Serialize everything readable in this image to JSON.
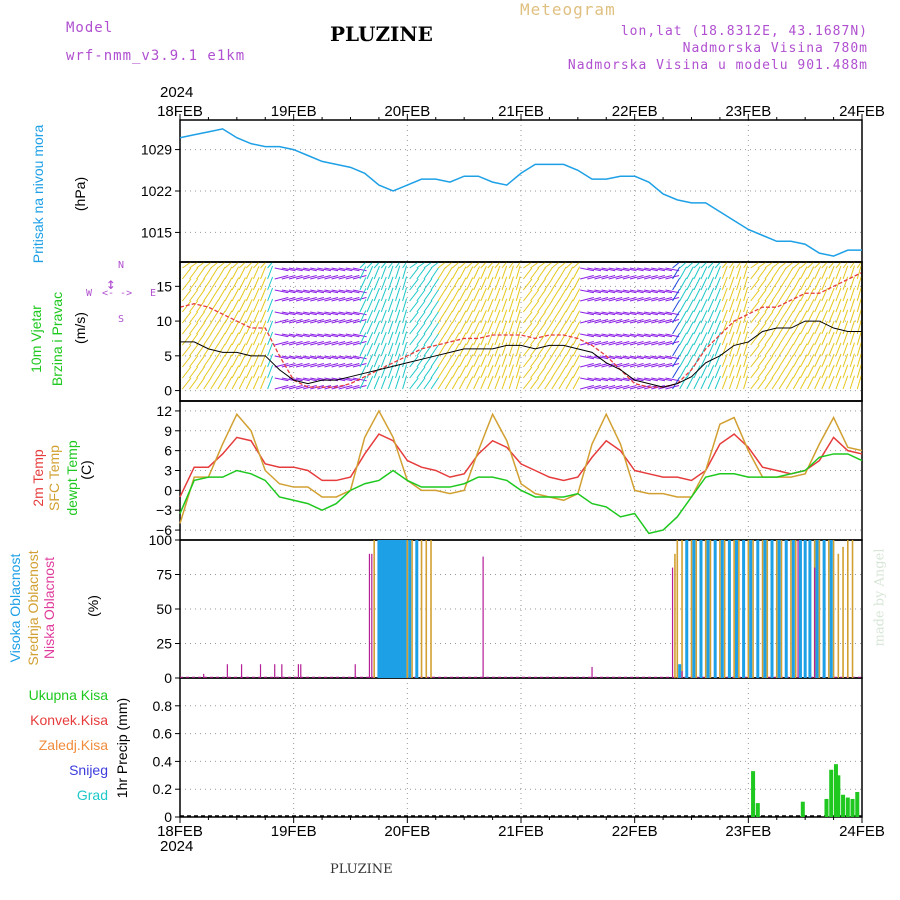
{
  "header": {
    "model_label": "Model",
    "model_name": "wrf-nmm_v3.9.1 e1km",
    "title": "PLUZINE",
    "meteogram": "Meteogram",
    "lonlat": "lon,lat (18.8312E, 43.1687N)",
    "altitude": "Nadmorska Visina 780m",
    "altitude_model": "Nadmorska Visina u modelu 901.488m",
    "year": "2024",
    "footer_title": "PLUZINE",
    "watermark": "made by Angel"
  },
  "colors": {
    "pressure": "#1ea0e6",
    "wind_low": "#1e46dc",
    "wind_mid": "#1ec8c8",
    "wind_high": "#e6c81e",
    "wind_dir": "#8c1ee6",
    "temp2m": "#e63c3c",
    "sfc": "#d2a032",
    "dew": "#1ec81e",
    "high_cloud": "#1ea0e6",
    "mid_cloud": "#d2a032",
    "low_cloud": "#b41e96",
    "precip": "#1ec81e",
    "convective": "#e63c3c",
    "freezing": "#f08c3c",
    "snow": "#3c3cdc",
    "hail": "#1ec8c8"
  },
  "axis_labels": {
    "pressure": [
      "Pritisak na nivou mora",
      "(hPa)"
    ],
    "wind": [
      "10m Vjetar",
      "Brzina i Pravac",
      "(m/s)"
    ],
    "compass": [
      "N",
      "S",
      "W",
      "E"
    ],
    "temp": [
      "2m Temp",
      "SFC Temp",
      "dewpt Temp",
      "(C)"
    ],
    "cloud": [
      "Visoka Oblacnost",
      "Srednja Oblacnost",
      "Niska Oblacnost",
      "(%)"
    ],
    "precip": [
      "Ukupna Kisa",
      "Konvek.Kisa",
      "Zaledj.Kisa",
      "Snijeg",
      "Grad",
      "1hr Precip (mm)"
    ]
  },
  "chart_data": [
    {
      "type": "line",
      "panel": "pressure",
      "x_ticks": [
        "18FEB",
        "19FEB",
        "20FEB",
        "21FEB",
        "22FEB",
        "23FEB",
        "24FEB"
      ],
      "xlim": [
        0,
        144
      ],
      "ylim": [
        1010,
        1034
      ],
      "y_ticks": [
        1015,
        1022,
        1029
      ],
      "series": [
        {
          "x": [
            0,
            3,
            6,
            9,
            12,
            15,
            18,
            21,
            24,
            27,
            30,
            33,
            36,
            39,
            42,
            45,
            48,
            51,
            54,
            57,
            60,
            63,
            66,
            69,
            72,
            75,
            78,
            81,
            84,
            87,
            90,
            93,
            96,
            99,
            102,
            105,
            108,
            111,
            114,
            117,
            120,
            123,
            126,
            129,
            132,
            135,
            138,
            141,
            144
          ],
          "values": [
            1031,
            1031.5,
            1032,
            1032.5,
            1031,
            1030,
            1029.5,
            1029.5,
            1029,
            1028,
            1027,
            1026.5,
            1026,
            1025,
            1023,
            1022,
            1023,
            1024,
            1024,
            1023.5,
            1024.5,
            1024.5,
            1023.5,
            1023,
            1025,
            1026.5,
            1026.5,
            1026.5,
            1025.5,
            1024,
            1024,
            1024.5,
            1024.5,
            1023.5,
            1021.5,
            1020.5,
            1020,
            1020,
            1018.5,
            1017,
            1015.5,
            1014.5,
            1013.5,
            1013.5,
            1013,
            1011.5,
            1011,
            1012,
            1012
          ]
        }
      ]
    },
    {
      "type": "line",
      "panel": "wind",
      "xlim": [
        0,
        144
      ],
      "ylim": [
        -1.5,
        18.5
      ],
      "y_ticks": [
        0,
        5,
        10,
        15
      ],
      "series": [
        {
          "name": "speed",
          "x": [
            0,
            3,
            6,
            9,
            12,
            15,
            18,
            21,
            24,
            27,
            30,
            33,
            36,
            39,
            42,
            45,
            48,
            51,
            54,
            57,
            60,
            63,
            66,
            69,
            72,
            75,
            78,
            81,
            84,
            87,
            90,
            93,
            96,
            99,
            102,
            105,
            108,
            111,
            114,
            117,
            120,
            123,
            126,
            129,
            132,
            135,
            138,
            141,
            144
          ],
          "values": [
            7,
            7,
            6,
            5.5,
            5.5,
            5,
            5,
            3,
            1.5,
            1,
            1.5,
            1.5,
            2,
            2.5,
            3,
            3.5,
            4,
            4.5,
            5,
            5.5,
            6,
            6,
            6,
            6.5,
            6.5,
            6,
            6.5,
            6.5,
            6,
            5.5,
            4,
            3,
            1.5,
            1,
            0.5,
            1,
            2,
            4,
            5,
            6.5,
            7,
            8.5,
            9,
            9,
            10,
            10,
            9,
            8.5,
            8.5
          ]
        },
        {
          "name": "gust",
          "x": [
            0,
            3,
            6,
            9,
            12,
            15,
            18,
            21,
            24,
            27,
            30,
            33,
            36,
            39,
            42,
            45,
            48,
            51,
            54,
            57,
            60,
            63,
            66,
            69,
            72,
            75,
            78,
            81,
            84,
            87,
            90,
            93,
            96,
            99,
            102,
            105,
            108,
            111,
            114,
            117,
            120,
            123,
            126,
            129,
            132,
            135,
            138,
            141,
            144
          ],
          "values": [
            12,
            12.5,
            12,
            11,
            10,
            9,
            9,
            5,
            1.5,
            0.5,
            0.5,
            0.5,
            1,
            2,
            3,
            4,
            5,
            6,
            6.5,
            7,
            7.5,
            7.5,
            8,
            8,
            8,
            7.5,
            8,
            8,
            7.5,
            6.5,
            5,
            3,
            1,
            0.5,
            0.5,
            1,
            3,
            6,
            8,
            10,
            11,
            12,
            12,
            13,
            14,
            14,
            15,
            16,
            17
          ]
        }
      ]
    },
    {
      "type": "line",
      "panel": "temperature",
      "xlim": [
        0,
        144
      ],
      "ylim": [
        -7.5,
        13.5
      ],
      "y_ticks": [
        -6,
        -3,
        0,
        3,
        6,
        9,
        12
      ],
      "series": [
        {
          "name": "2m Temp",
          "x": [
            0,
            3,
            6,
            9,
            12,
            15,
            18,
            21,
            24,
            27,
            30,
            33,
            36,
            39,
            42,
            45,
            48,
            51,
            54,
            57,
            60,
            63,
            66,
            69,
            72,
            75,
            78,
            81,
            84,
            87,
            90,
            93,
            96,
            99,
            102,
            105,
            108,
            111,
            114,
            117,
            120,
            123,
            126,
            129,
            132,
            135,
            138,
            141,
            144
          ],
          "values": [
            -1,
            3.5,
            3.5,
            5.5,
            8,
            7.5,
            4,
            3.5,
            3.5,
            3,
            1.5,
            1.5,
            2,
            5.5,
            8.5,
            7.5,
            4.5,
            3.5,
            3,
            2,
            2.5,
            5.5,
            7.5,
            6.5,
            4,
            3,
            2,
            1.5,
            2,
            5,
            7.5,
            6,
            3,
            2.5,
            2,
            2,
            1.5,
            3,
            7,
            8.5,
            6.5,
            3.5,
            3,
            2.5,
            3,
            4.5,
            8,
            6,
            5.5
          ]
        },
        {
          "name": "SFC Temp",
          "x": [
            0,
            3,
            6,
            9,
            12,
            15,
            18,
            21,
            24,
            27,
            30,
            33,
            36,
            39,
            42,
            45,
            48,
            51,
            54,
            57,
            60,
            63,
            66,
            69,
            72,
            75,
            78,
            81,
            84,
            87,
            90,
            93,
            96,
            99,
            102,
            105,
            108,
            111,
            114,
            117,
            120,
            123,
            126,
            129,
            132,
            135,
            138,
            141,
            144
          ],
          "values": [
            -5,
            2,
            2,
            7,
            11.5,
            9,
            3,
            1,
            0.5,
            0.5,
            -1,
            -1,
            0,
            8,
            12,
            8,
            1.5,
            0,
            0,
            -0.5,
            0,
            6,
            11.5,
            7.5,
            1,
            -0.5,
            -1,
            -1.5,
            -0.5,
            7,
            11.5,
            7,
            0,
            -0.5,
            -0.5,
            -1,
            -1,
            3,
            10,
            11,
            6,
            2,
            2,
            2,
            2.5,
            7,
            11,
            6.5,
            6
          ]
        },
        {
          "name": "dewpt Temp",
          "x": [
            0,
            3,
            6,
            9,
            12,
            15,
            18,
            21,
            24,
            27,
            30,
            33,
            36,
            39,
            42,
            45,
            48,
            51,
            54,
            57,
            60,
            63,
            66,
            69,
            72,
            75,
            78,
            81,
            84,
            87,
            90,
            93,
            96,
            99,
            102,
            105,
            108,
            111,
            114,
            117,
            120,
            123,
            126,
            129,
            132,
            135,
            138,
            141,
            144
          ],
          "values": [
            -3.5,
            1.5,
            2,
            2,
            3,
            2.5,
            1.5,
            -1,
            -1.5,
            -2,
            -3,
            -2,
            0,
            1,
            1.5,
            3,
            1.5,
            0.5,
            0.5,
            0.5,
            1,
            2,
            2,
            1.5,
            0,
            -1,
            -1,
            -1,
            -0.5,
            -2,
            -2.5,
            -4,
            -3.5,
            -6.5,
            -6,
            -4,
            -1,
            2,
            2.5,
            2.5,
            2,
            2,
            2,
            2.5,
            3,
            5,
            5.5,
            5.5,
            4.5
          ]
        }
      ]
    },
    {
      "type": "bar",
      "panel": "cloud",
      "xlim": [
        0,
        144
      ],
      "ylim": [
        0,
        100
      ],
      "y_ticks": [
        0,
        25,
        50,
        75,
        100
      ],
      "series": [
        {
          "name": "Niska Oblacnost",
          "x": [
            5,
            10,
            13,
            17,
            20,
            21.5,
            25,
            25.5,
            37,
            40,
            40.5,
            64,
            87,
            104,
            106,
            130.5,
            134
          ],
          "values": [
            3,
            10,
            10,
            10,
            10,
            10,
            10,
            10,
            10,
            90,
            90,
            88,
            8,
            80,
            5,
            100,
            80
          ]
        },
        {
          "name": "Visoka Oblacnost",
          "x": [
            42,
            42.5,
            43,
            43.5,
            44,
            44.5,
            45,
            45.5,
            46,
            46.5,
            47,
            47.5,
            48.5,
            50,
            105.5,
            107,
            108.5,
            110,
            111.5,
            113,
            114.5,
            116,
            117.5,
            119,
            120.5,
            122,
            123.5,
            125,
            126.5,
            128,
            129.5,
            131,
            132,
            133,
            134.5,
            136,
            137.5
          ],
          "values": [
            100,
            100,
            100,
            100,
            100,
            100,
            100,
            100,
            100,
            100,
            100,
            100,
            100,
            100,
            10,
            100,
            100,
            100,
            100,
            100,
            100,
            100,
            100,
            100,
            100,
            100,
            100,
            100,
            100,
            100,
            100,
            100,
            100,
            100,
            100,
            100,
            100
          ]
        },
        {
          "name": "Srednja Oblacnost",
          "x": [
            41,
            42,
            43,
            44,
            45,
            46,
            47,
            48,
            49,
            50,
            51,
            52,
            53,
            104.5,
            105,
            106,
            107,
            108,
            109,
            110,
            111,
            112,
            113,
            114,
            115,
            116,
            117,
            118,
            119,
            120,
            121,
            122,
            123,
            124,
            125,
            126,
            127,
            128,
            129,
            130,
            131,
            132,
            133,
            134,
            135,
            136,
            137,
            138,
            139,
            140,
            141,
            142
          ],
          "values": [
            100,
            100,
            100,
            100,
            100,
            100,
            100,
            100,
            100,
            100,
            100,
            100,
            100,
            90,
            100,
            100,
            100,
            100,
            100,
            100,
            100,
            100,
            100,
            100,
            100,
            100,
            100,
            100,
            100,
            100,
            100,
            100,
            100,
            100,
            100,
            100,
            100,
            100,
            100,
            100,
            100,
            100,
            100,
            100,
            100,
            100,
            100,
            100,
            90,
            95,
            100,
            100
          ]
        }
      ]
    },
    {
      "type": "bar",
      "panel": "precip",
      "xlim": [
        0,
        144
      ],
      "ylim": [
        0,
        1.0
      ],
      "y_ticks": [
        0,
        0.2,
        0.4,
        0.6,
        0.8
      ],
      "series": [
        {
          "name": "Ukupna Kisa",
          "x": [
            121,
            122,
            131.5,
            136.5,
            137.5,
            138.5,
            139,
            140,
            141,
            142,
            143
          ],
          "values": [
            0.33,
            0.1,
            0.11,
            0.13,
            0.34,
            0.38,
            0.3,
            0.16,
            0.14,
            0.13,
            0.18
          ]
        }
      ]
    }
  ]
}
